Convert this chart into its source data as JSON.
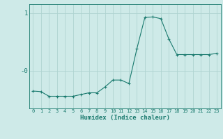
{
  "x": [
    0,
    1,
    2,
    3,
    4,
    5,
    6,
    7,
    8,
    9,
    10,
    11,
    12,
    13,
    14,
    15,
    16,
    17,
    18,
    19,
    20,
    21,
    22,
    23
  ],
  "y": [
    -0.35,
    -0.36,
    -0.44,
    -0.44,
    -0.44,
    -0.44,
    -0.41,
    -0.38,
    -0.38,
    -0.28,
    -0.16,
    -0.16,
    -0.22,
    0.38,
    0.92,
    0.93,
    0.9,
    0.55,
    0.28,
    0.28,
    0.28,
    0.28,
    0.28,
    0.3
  ],
  "line_color": "#1a7a6e",
  "marker": "+",
  "marker_size": 3,
  "marker_linewidth": 0.8,
  "background_color": "#ceeae8",
  "grid_color": "#afd4d1",
  "xlabel": "Humidex (Indice chaleur)",
  "font_color": "#1a7a6e",
  "font_family": "monospace",
  "ylim": [
    -0.65,
    1.15
  ],
  "xlim": [
    -0.5,
    23.5
  ],
  "ytick_positions": [
    1.0,
    0.0
  ],
  "ytick_labels": [
    "1",
    "-0"
  ],
  "xlabel_fontsize": 6.5,
  "xtick_fontsize": 5.0,
  "ytick_fontsize": 6.5
}
